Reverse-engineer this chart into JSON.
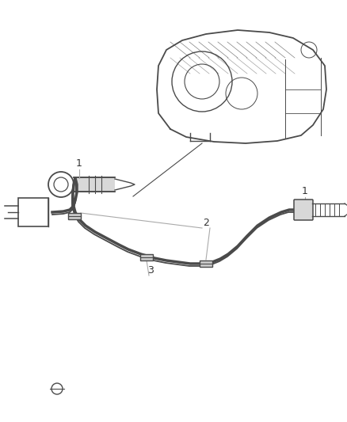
{
  "bg_color": "#ffffff",
  "line_color": "#4a4a4a",
  "label_color": "#333333",
  "leader_color": "#aaaaaa",
  "fig_width": 4.38,
  "fig_height": 5.33,
  "dpi": 100
}
